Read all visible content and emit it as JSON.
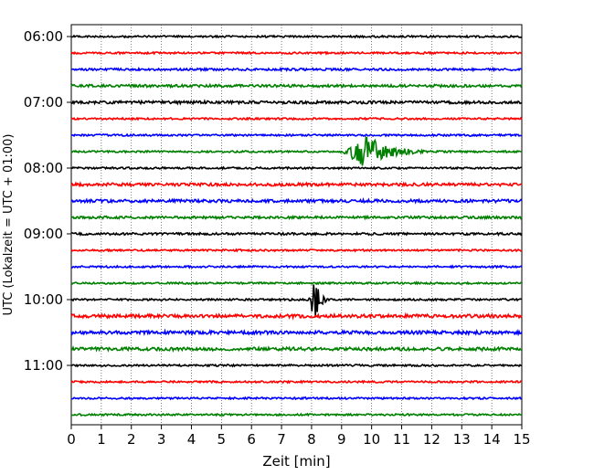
{
  "chart_data": {
    "type": "line",
    "xlabel": "Zeit  [min]",
    "ylabel": "UTC (Lokalzeit = UTC + 01:00)",
    "xlim": [
      0,
      15
    ],
    "x_ticks": [
      "0",
      "1",
      "2",
      "3",
      "4",
      "5",
      "6",
      "7",
      "8",
      "9",
      "10",
      "11",
      "12",
      "13",
      "14",
      "15"
    ],
    "y_ticks": [
      "06:00",
      "07:00",
      "08:00",
      "09:00",
      "10:00",
      "11:00"
    ],
    "grid": "vertical-dotted",
    "color_cycle": [
      "#000000",
      "#ff0000",
      "#0000ff",
      "#008000"
    ],
    "series": [
      {
        "start": "06:00",
        "color": "#000000",
        "amplitude": 1.0
      },
      {
        "start": "06:15",
        "color": "#ff0000",
        "amplitude": 1.0
      },
      {
        "start": "06:30",
        "color": "#0000ff",
        "amplitude": 1.2
      },
      {
        "start": "06:45",
        "color": "#008000",
        "amplitude": 1.4
      },
      {
        "start": "07:00",
        "color": "#000000",
        "amplitude": 1.5
      },
      {
        "start": "07:15",
        "color": "#ff0000",
        "amplitude": 1.0
      },
      {
        "start": "07:30",
        "color": "#0000ff",
        "amplitude": 1.0
      },
      {
        "start": "07:45",
        "color": "#008000",
        "amplitude": 1.0,
        "event": {
          "type": "earthquake",
          "start_min": 9.0,
          "peak_min": 9.8,
          "end_min": 12.0,
          "peak_amplitude": 20
        }
      },
      {
        "start": "08:00",
        "color": "#000000",
        "amplitude": 1.0
      },
      {
        "start": "08:15",
        "color": "#ff0000",
        "amplitude": 1.6
      },
      {
        "start": "08:30",
        "color": "#0000ff",
        "amplitude": 1.6
      },
      {
        "start": "08:45",
        "color": "#008000",
        "amplitude": 1.3
      },
      {
        "start": "09:00",
        "color": "#000000",
        "amplitude": 1.2
      },
      {
        "start": "09:15",
        "color": "#ff0000",
        "amplitude": 1.0
      },
      {
        "start": "09:30",
        "color": "#0000ff",
        "amplitude": 1.0
      },
      {
        "start": "09:45",
        "color": "#008000",
        "amplitude": 1.0
      },
      {
        "start": "10:00",
        "color": "#000000",
        "amplitude": 1.0,
        "event": {
          "type": "spike",
          "start_min": 7.9,
          "peak_min": 8.1,
          "end_min": 8.6,
          "peak_amplitude": 24
        }
      },
      {
        "start": "10:15",
        "color": "#ff0000",
        "amplitude": 1.8
      },
      {
        "start": "10:30",
        "color": "#0000ff",
        "amplitude": 1.8
      },
      {
        "start": "10:45",
        "color": "#008000",
        "amplitude": 1.8
      },
      {
        "start": "11:00",
        "color": "#000000",
        "amplitude": 1.0
      },
      {
        "start": "11:15",
        "color": "#ff0000",
        "amplitude": 1.0
      },
      {
        "start": "11:30",
        "color": "#0000ff",
        "amplitude": 1.0
      },
      {
        "start": "11:45",
        "color": "#008000",
        "amplitude": 1.0
      }
    ]
  }
}
